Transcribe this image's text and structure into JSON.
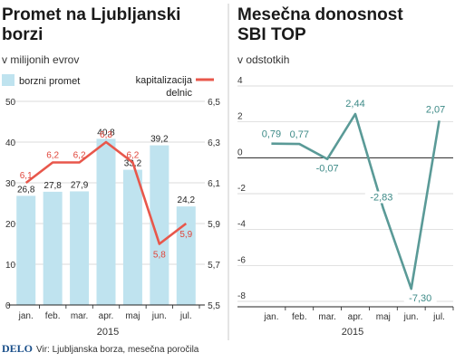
{
  "left": {
    "title_line1": "Promet na Ljubljanski",
    "title_line2": "borzi",
    "subtitle": "v milijonih evrov",
    "legend_bars": "borzni promet",
    "legend_line_1": "kapitalizacija",
    "legend_line_2": "delnic",
    "year": "2015"
  },
  "right": {
    "title_line1": "Mesečna donosnost",
    "title_line2": "SBI TOP",
    "subtitle": "v odstotkih",
    "year": "2015"
  },
  "footer": {
    "brand": "DELO",
    "source": "Vir: Ljubljanska borza, mesečna poročila"
  },
  "colors": {
    "bar": "#bfe3ef",
    "line_red": "#e8574b",
    "line_teal": "#5a9a97",
    "grid": "#cfcfcf"
  },
  "chart_data": [
    {
      "type": "bar",
      "categories": [
        "jan.",
        "feb.",
        "mar.",
        "apr.",
        "maj",
        "jun.",
        "jul."
      ],
      "series": [
        {
          "name": "borzni promet",
          "values": [
            26.8,
            27.8,
            27.9,
            40.8,
            33.2,
            39.2,
            24.2
          ],
          "labels": [
            "26,8",
            "27,8",
            "27,9",
            "40,8",
            "33,2",
            "39,2",
            "24,2"
          ]
        }
      ],
      "line_series": [
        {
          "name": "kapitalizacija delnic",
          "values": [
            6.1,
            6.2,
            6.2,
            6.3,
            6.2,
            5.8,
            5.9
          ],
          "labels": [
            "6,1",
            "6,2",
            "6,2",
            "6,3",
            "6,2",
            "5,8",
            "5,9"
          ]
        }
      ],
      "ylim": [
        0,
        50
      ],
      "y_ticks": [
        "0",
        "10",
        "20",
        "30",
        "40",
        "50"
      ],
      "y2lim": [
        5.5,
        6.5
      ],
      "y2_ticks": [
        "5,5",
        "5,7",
        "5,9",
        "6,1",
        "6,3",
        "6,5"
      ],
      "grid": true,
      "legend_position": "top"
    },
    {
      "type": "line",
      "categories": [
        "jan.",
        "feb.",
        "mar.",
        "apr.",
        "maj",
        "jun.",
        "jul."
      ],
      "series": [
        {
          "values": [
            0.79,
            0.77,
            -0.07,
            2.44,
            -2.83,
            -7.3,
            2.07
          ],
          "labels": [
            "0,79",
            "0,77",
            "-0,07",
            "2,44",
            "-2,83",
            "-7,30",
            "2,07"
          ]
        }
      ],
      "ylim": [
        -8,
        4
      ],
      "y_ticks": [
        "-8",
        "-6",
        "-4",
        "-2",
        "0",
        "2",
        "4"
      ],
      "grid": true
    }
  ]
}
